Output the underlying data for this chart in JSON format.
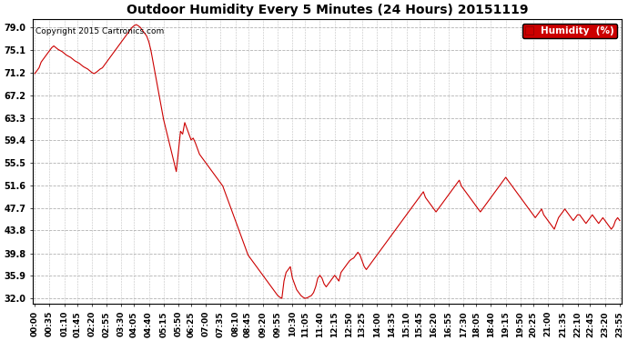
{
  "title": "Outdoor Humidity Every 5 Minutes (24 Hours) 20151119",
  "copyright": "Copyright 2015 Cartronics.com",
  "legend_label": "Humidity  (%)",
  "legend_bg": "#cc0000",
  "line_color": "#cc0000",
  "background_color": "#ffffff",
  "grid_color": "#aaaaaa",
  "yticks": [
    32.0,
    35.9,
    39.8,
    43.8,
    47.7,
    51.6,
    55.5,
    59.4,
    63.3,
    67.2,
    71.2,
    75.1,
    79.0
  ],
  "ylim": [
    31.0,
    80.5
  ],
  "title_fontsize": 10,
  "axis_fontsize": 7,
  "humidity_data": [
    71.0,
    71.5,
    72.0,
    73.0,
    73.5,
    74.0,
    74.5,
    75.0,
    75.5,
    75.8,
    75.5,
    75.2,
    75.0,
    74.8,
    74.5,
    74.2,
    74.0,
    73.8,
    73.5,
    73.2,
    73.0,
    72.8,
    72.5,
    72.2,
    72.0,
    71.8,
    71.5,
    71.2,
    71.0,
    71.2,
    71.5,
    71.8,
    72.0,
    72.5,
    73.0,
    73.5,
    74.0,
    74.5,
    75.0,
    75.5,
    76.0,
    76.5,
    77.0,
    77.5,
    78.0,
    78.5,
    79.0,
    79.3,
    79.5,
    79.3,
    79.0,
    78.5,
    78.0,
    77.5,
    76.5,
    75.0,
    73.0,
    71.0,
    69.0,
    67.0,
    65.0,
    63.0,
    61.5,
    60.0,
    58.5,
    57.0,
    55.5,
    54.0,
    57.5,
    61.0,
    60.5,
    62.5,
    61.5,
    60.5,
    59.5,
    59.8,
    59.0,
    58.0,
    57.0,
    56.5,
    56.0,
    55.5,
    55.0,
    54.5,
    54.0,
    53.5,
    53.0,
    52.5,
    52.0,
    51.5,
    50.5,
    49.5,
    48.5,
    47.5,
    46.5,
    45.5,
    44.5,
    43.5,
    42.5,
    41.5,
    40.5,
    39.5,
    39.0,
    38.5,
    38.0,
    37.5,
    37.0,
    36.5,
    36.0,
    35.5,
    35.0,
    34.5,
    34.0,
    33.5,
    33.0,
    32.5,
    32.2,
    32.0,
    35.0,
    36.5,
    37.0,
    37.5,
    35.5,
    34.5,
    33.5,
    33.0,
    32.5,
    32.2,
    32.0,
    32.1,
    32.3,
    32.5,
    33.0,
    34.0,
    35.5,
    36.0,
    35.5,
    34.5,
    34.0,
    34.5,
    35.0,
    35.5,
    36.0,
    35.5,
    35.0,
    36.5,
    37.0,
    37.5,
    38.0,
    38.5,
    38.8,
    39.0,
    39.5,
    40.0,
    39.5,
    38.5,
    37.5,
    37.0,
    37.5,
    38.0,
    38.5,
    39.0,
    39.5,
    40.0,
    40.5,
    41.0,
    41.5,
    42.0,
    42.5,
    43.0,
    43.5,
    44.0,
    44.5,
    45.0,
    45.5,
    46.0,
    46.5,
    47.0,
    47.5,
    48.0,
    48.5,
    49.0,
    49.5,
    50.0,
    50.5,
    49.5,
    49.0,
    48.5,
    48.0,
    47.5,
    47.0,
    47.5,
    48.0,
    48.5,
    49.0,
    49.5,
    50.0,
    50.5,
    51.0,
    51.5,
    52.0,
    52.5,
    51.5,
    51.0,
    50.5,
    50.0,
    49.5,
    49.0,
    48.5,
    48.0,
    47.5,
    47.0,
    47.5,
    48.0,
    48.5,
    49.0,
    49.5,
    50.0,
    50.5,
    51.0,
    51.5,
    52.0,
    52.5,
    53.0,
    52.5,
    52.0,
    51.5,
    51.0,
    50.5,
    50.0,
    49.5,
    49.0,
    48.5,
    48.0,
    47.5,
    47.0,
    46.5,
    46.0,
    46.5,
    47.0,
    47.5,
    46.5,
    46.0,
    45.5,
    45.0,
    44.5,
    44.0,
    45.0,
    46.0,
    46.5,
    47.0,
    47.5,
    47.0,
    46.5,
    46.0,
    45.5,
    46.0,
    46.5,
    46.5,
    46.0,
    45.5,
    45.0,
    45.5,
    46.0,
    46.5,
    46.0,
    45.5,
    45.0,
    45.5,
    46.0,
    45.5,
    45.0,
    44.5,
    44.0,
    44.5,
    45.5,
    46.0,
    45.5
  ],
  "xtick_labels": [
    "00:00",
    "00:35",
    "01:10",
    "01:45",
    "02:20",
    "02:55",
    "03:30",
    "04:05",
    "04:40",
    "05:15",
    "05:50",
    "06:25",
    "07:00",
    "07:35",
    "08:10",
    "08:45",
    "09:20",
    "09:55",
    "10:30",
    "11:05",
    "11:40",
    "12:15",
    "12:50",
    "13:25",
    "14:00",
    "14:35",
    "15:10",
    "15:45",
    "16:20",
    "16:55",
    "17:30",
    "18:05",
    "18:40",
    "19:15",
    "19:50",
    "20:25",
    "21:00",
    "21:35",
    "22:10",
    "22:45",
    "23:20",
    "23:55"
  ]
}
